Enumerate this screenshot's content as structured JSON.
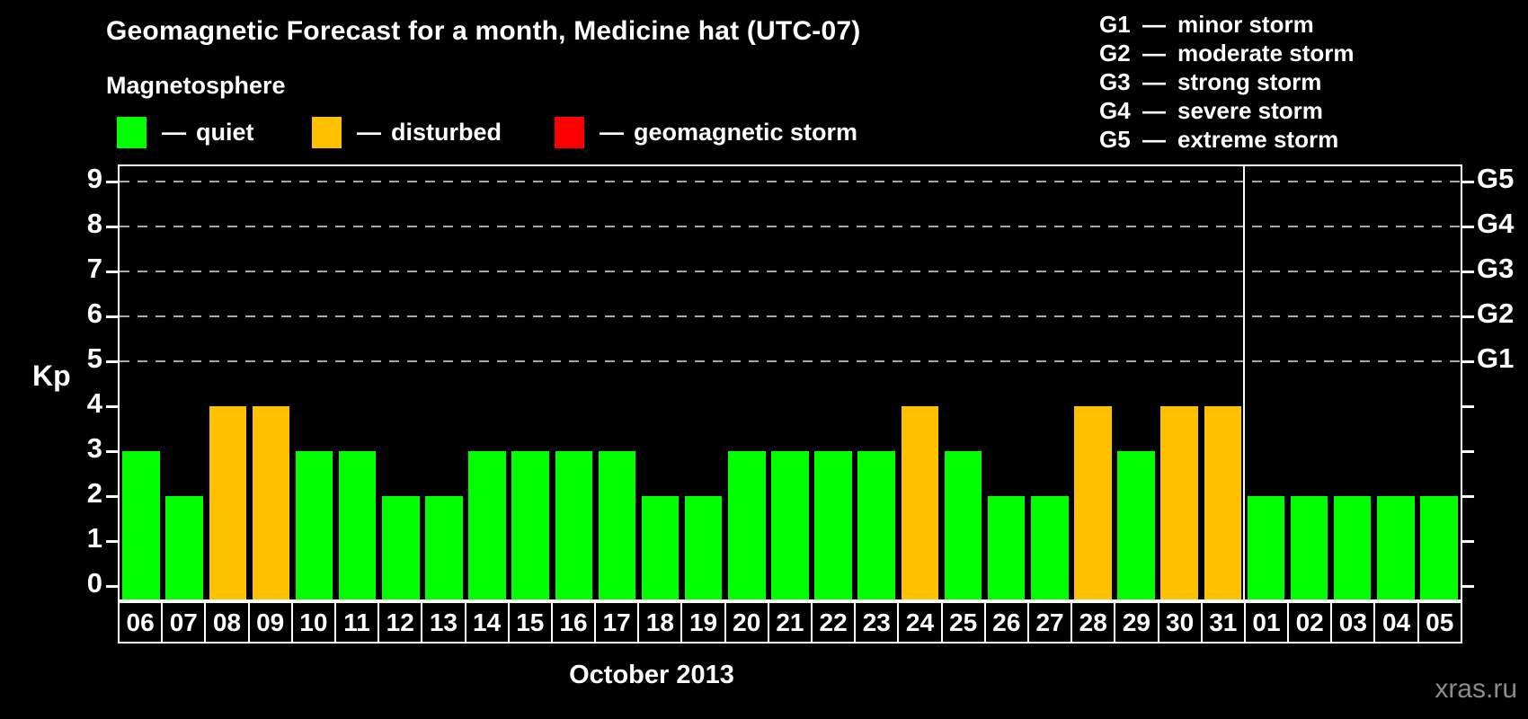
{
  "chart_data": {
    "type": "bar",
    "title": "Geomagnetic Forecast for a month, Medicine hat (UTC-07)",
    "ylabel": "Kp",
    "xlabel": "October 2013",
    "ylim": [
      0,
      9
    ],
    "yticks": [
      0,
      1,
      2,
      3,
      4,
      5,
      6,
      7,
      8,
      9
    ],
    "grid": "dashed horizontal lines at Kp 5-9 only",
    "grid_levels_kp": [
      5,
      6,
      7,
      8,
      9
    ],
    "right_axis_labels": [
      {
        "label": "G1",
        "kp": 5
      },
      {
        "label": "G2",
        "kp": 6
      },
      {
        "label": "G3",
        "kp": 7
      },
      {
        "label": "G4",
        "kp": 8
      },
      {
        "label": "G5",
        "kp": 9
      }
    ],
    "categories": [
      "06",
      "07",
      "08",
      "09",
      "10",
      "11",
      "12",
      "13",
      "14",
      "15",
      "16",
      "17",
      "18",
      "19",
      "20",
      "21",
      "22",
      "23",
      "24",
      "25",
      "26",
      "27",
      "28",
      "29",
      "30",
      "31",
      "01",
      "02",
      "03",
      "04",
      "05"
    ],
    "values": [
      3,
      2,
      4,
      4,
      3,
      3,
      2,
      2,
      3,
      3,
      3,
      3,
      2,
      2,
      3,
      3,
      3,
      3,
      4,
      3,
      2,
      2,
      4,
      3,
      4,
      4,
      2,
      2,
      2,
      2,
      2
    ],
    "statuses": [
      "quiet",
      "quiet",
      "disturbed",
      "disturbed",
      "quiet",
      "quiet",
      "quiet",
      "quiet",
      "quiet",
      "quiet",
      "quiet",
      "quiet",
      "quiet",
      "quiet",
      "quiet",
      "quiet",
      "quiet",
      "quiet",
      "disturbed",
      "quiet",
      "quiet",
      "quiet",
      "disturbed",
      "quiet",
      "disturbed",
      "disturbed",
      "quiet",
      "quiet",
      "quiet",
      "quiet",
      "quiet"
    ],
    "colors": {
      "quiet": "#00ff00",
      "disturbed": "#ffc000",
      "storm": "#ff0000"
    },
    "month_separator_after_index": 25,
    "legend_position": "top-left"
  },
  "legend": {
    "heading": "Magnetosphere",
    "items": [
      {
        "key": "quiet",
        "separator": "—",
        "label": "quiet",
        "color": "#00ff00"
      },
      {
        "key": "disturbed",
        "separator": "—",
        "label": "disturbed",
        "color": "#ffc000"
      },
      {
        "key": "storm",
        "separator": "—",
        "label": "geomagnetic storm",
        "color": "#ff0000"
      }
    ]
  },
  "g_scale_legend": {
    "items": [
      {
        "code": "G1",
        "separator": "—",
        "desc": "minor storm"
      },
      {
        "code": "G2",
        "separator": "—",
        "desc": "moderate storm"
      },
      {
        "code": "G3",
        "separator": "—",
        "desc": "strong storm"
      },
      {
        "code": "G4",
        "separator": "—",
        "desc": "severe storm"
      },
      {
        "code": "G5",
        "separator": "—",
        "desc": "extreme storm"
      }
    ]
  },
  "footer": {
    "month_label": "October 2013",
    "watermark": "xras.ru"
  }
}
